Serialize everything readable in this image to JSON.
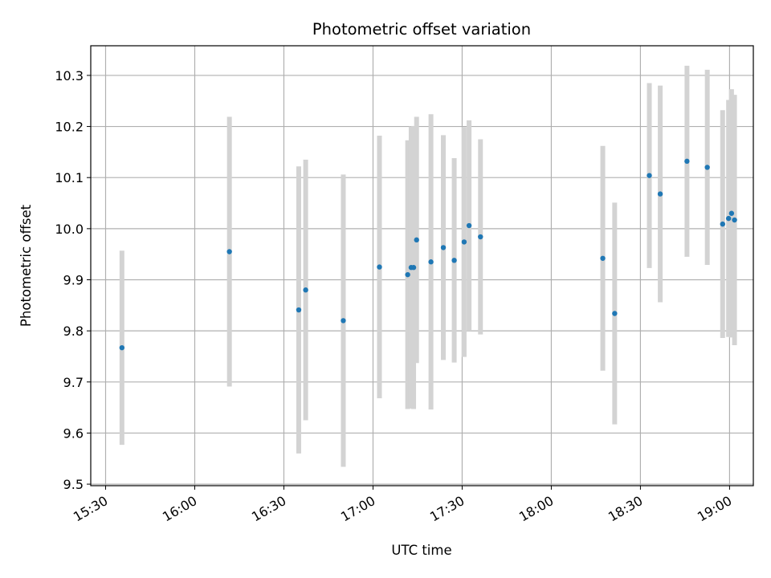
{
  "chart_data": {
    "type": "scatter",
    "title": "Photometric offset variation",
    "xlabel": "UTC time",
    "ylabel": "Photometric offset",
    "xlim": [
      "15:25",
      "19:08"
    ],
    "ylim": [
      9.497,
      10.358
    ],
    "grid": true,
    "legend": "none",
    "point_color": "#1f77b4",
    "errorbar_color": "#d3d3d3",
    "x_ticks": [
      "15:30",
      "16:00",
      "16:30",
      "17:00",
      "17:30",
      "18:00",
      "18:30",
      "19:00"
    ],
    "y_ticks": [
      "9.5",
      "9.6",
      "9.7",
      "9.8",
      "9.9",
      "10.0",
      "10.1",
      "10.2",
      "10.3"
    ],
    "points": [
      {
        "t": "15:35:30",
        "y": 9.767,
        "err": 0.19
      },
      {
        "t": "16:11:40",
        "y": 9.955,
        "err": 0.264
      },
      {
        "t": "16:35:00",
        "y": 9.841,
        "err": 0.281
      },
      {
        "t": "16:37:20",
        "y": 9.88,
        "err": 0.255
      },
      {
        "t": "16:50:00",
        "y": 9.82,
        "err": 0.286
      },
      {
        "t": "17:02:10",
        "y": 9.925,
        "err": 0.257
      },
      {
        "t": "17:11:40",
        "y": 9.91,
        "err": 0.263
      },
      {
        "t": "17:12:50",
        "y": 9.924,
        "err": 0.276
      },
      {
        "t": "17:13:40",
        "y": 9.924,
        "err": 0.277
      },
      {
        "t": "17:14:40",
        "y": 9.978,
        "err": 0.241
      },
      {
        "t": "17:19:30",
        "y": 9.935,
        "err": 0.289
      },
      {
        "t": "17:23:40",
        "y": 9.963,
        "err": 0.22
      },
      {
        "t": "17:27:20",
        "y": 9.938,
        "err": 0.2
      },
      {
        "t": "17:30:40",
        "y": 9.974,
        "err": 0.225
      },
      {
        "t": "17:32:20",
        "y": 10.006,
        "err": 0.206
      },
      {
        "t": "17:36:10",
        "y": 9.984,
        "err": 0.191
      },
      {
        "t": "18:17:20",
        "y": 9.942,
        "err": 0.22
      },
      {
        "t": "18:21:20",
        "y": 9.834,
        "err": 0.217
      },
      {
        "t": "18:33:00",
        "y": 10.104,
        "err": 0.181
      },
      {
        "t": "18:36:40",
        "y": 10.068,
        "err": 0.212
      },
      {
        "t": "18:45:40",
        "y": 10.132,
        "err": 0.187
      },
      {
        "t": "18:52:30",
        "y": 10.12,
        "err": 0.191
      },
      {
        "t": "18:57:40",
        "y": 10.009,
        "err": 0.223
      },
      {
        "t": "18:59:40",
        "y": 10.02,
        "err": 0.232
      },
      {
        "t": "19:00:40",
        "y": 10.03,
        "err": 0.243
      },
      {
        "t": "19:01:40",
        "y": 10.017,
        "err": 0.245
      }
    ]
  }
}
